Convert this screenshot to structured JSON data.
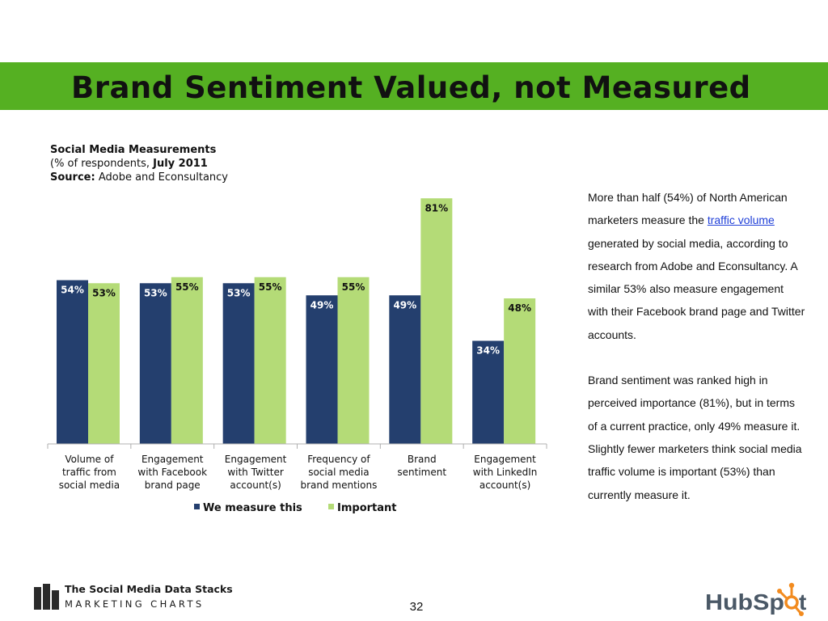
{
  "slide": {
    "title": "Brand Sentiment Valued, not Measured",
    "page_number": "32"
  },
  "source_block": {
    "heading": "Social Media Measurements",
    "subline_prefix": "(% of respondents, ",
    "subline_date": "July 2011",
    "source_label": "Source:",
    "source_value": " Adobe and Econsultancy"
  },
  "chart_data": {
    "type": "bar",
    "title": "",
    "xlabel": "",
    "ylabel": "",
    "ylim": [
      0,
      100
    ],
    "grid": false,
    "legend_position": "bottom",
    "categories": [
      [
        "Volume of",
        "traffic from",
        "social media"
      ],
      [
        "Engagement",
        "with Facebook",
        "brand page"
      ],
      [
        "Engagement",
        "with Twitter",
        "account(s)"
      ],
      [
        "Frequency of",
        "social media",
        "brand mentions"
      ],
      [
        "Brand",
        "sentiment"
      ],
      [
        "Engagement",
        "with LinkedIn",
        "account(s)"
      ]
    ],
    "series": [
      {
        "name": "We measure this",
        "color": "#243f6e",
        "label_color": "#ffffff",
        "values": [
          54,
          53,
          53,
          49,
          49,
          34
        ],
        "labels": [
          "54%",
          "53%",
          "53%",
          "49%",
          "49%",
          "34%"
        ]
      },
      {
        "name": "Important",
        "color": "#b4db77",
        "label_color": "#111111",
        "values": [
          53,
          55,
          55,
          55,
          81,
          48
        ],
        "labels": [
          "53%",
          "55%",
          "55%",
          "55%",
          "81%",
          "48%"
        ]
      }
    ]
  },
  "side_text": {
    "p1_before_link": "More than half (54%) of North American marketers measure the ",
    "p1_link": "traffic volume",
    "p1_after_link": " generated by social media, according to research from Adobe and Econsultancy. A similar 53% also measure engagement with their Facebook brand page and Twitter accounts.",
    "p2": "Brand sentiment was ranked high in perceived importance (81%), but in terms of a current practice, only 49% measure it. Slightly fewer marketers think social media traffic volume is important (53%) than currently measure it."
  },
  "footer": {
    "logo_title": "The Social Media Data Stacks",
    "logo_subtitle": "MARKETING CHARTS",
    "hubspot_text": "HubSpot",
    "colors": {
      "title_bar": "#55b022",
      "hubspot_gray": "#4a5866",
      "hubspot_orange": "#f28b1f"
    }
  }
}
